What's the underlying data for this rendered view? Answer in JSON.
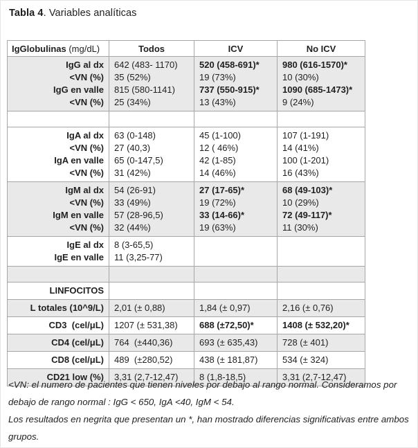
{
  "page": {
    "title_bold": "Tabla 4",
    "title_rest": ". Variables analíticas"
  },
  "table": {
    "header": {
      "igg_label": "IgGlobulinas",
      "igg_unit": " (mg/dL)",
      "todos": "Todos",
      "icv": "ICV",
      "no_icv": "No ICV"
    },
    "blocks": [
      {
        "id": "igg-block",
        "shaded": true,
        "pad_bottom": true,
        "rows": [
          {
            "label": "IgG al dx",
            "cells": [
              {
                "t": "642 (483- 1170)"
              },
              {
                "t": "520 (458-691)*",
                "b": true
              },
              {
                "t": "980 (616-1570)*",
                "b": true
              }
            ]
          },
          {
            "label": "<VN (%)",
            "cells": [
              {
                "t": "35 (52%)"
              },
              {
                "t": "19 (73%)"
              },
              {
                "t": "10 (30%)"
              }
            ]
          },
          {
            "label": "IgG en valle",
            "cells": [
              {
                "t": "815 (580-1141)"
              },
              {
                "t": "737 (550-915)*",
                "b": true
              },
              {
                "t": "1090 (685-1473)*",
                "b": true
              }
            ]
          },
          {
            "label": "<VN (%)",
            "cells": [
              {
                "t": "25 (34%)"
              },
              {
                "t": "13 (43%)"
              },
              {
                "t": "9 (24%)"
              }
            ]
          }
        ]
      },
      {
        "id": "spacer-row-1",
        "shaded": false,
        "spacer": true,
        "rows": []
      },
      {
        "id": "iga-block",
        "shaded": false,
        "rows": [
          {
            "label": "IgA al dx",
            "cells": [
              {
                "t": "63 (0-148)"
              },
              {
                "t": "45 (1-100)"
              },
              {
                "t": "107 (1-191)"
              }
            ]
          },
          {
            "label": "<VN (%)",
            "cells": [
              {
                "t": "27 (40,3)"
              },
              {
                "t": "12 ( 46%)"
              },
              {
                "t": "14 (41%)"
              }
            ]
          },
          {
            "label": "IgA en valle",
            "cells": [
              {
                "t": "65 (0-147,5)"
              },
              {
                "t": "42 (1-85)"
              },
              {
                "t": "100 (1-201)"
              }
            ]
          },
          {
            "label": "<VN (%)",
            "cells": [
              {
                "t": "31 (42%)"
              },
              {
                "t": "14 (46%)"
              },
              {
                "t": "16 (43%)"
              }
            ]
          }
        ]
      },
      {
        "id": "igm-block",
        "shaded": true,
        "rows": [
          {
            "label": "IgM al dx",
            "cells": [
              {
                "t": "54 (26-91)"
              },
              {
                "t": "27 (17-65)*",
                "b": true
              },
              {
                "t": "68 (49-103)*",
                "b": true
              }
            ]
          },
          {
            "label": "<VN (%)",
            "cells": [
              {
                "t": "33 (49%)"
              },
              {
                "t": "19 (72%)"
              },
              {
                "t": "10 (29%)"
              }
            ]
          },
          {
            "label": "IgM en valle",
            "cells": [
              {
                "t": "57 (28-96,5)"
              },
              {
                "t": "33 (14-66)*",
                "b": true
              },
              {
                "t": "72 (49-117)*",
                "b": true
              }
            ]
          },
          {
            "label": "<VN (%)",
            "cells": [
              {
                "t": "32 (44%)"
              },
              {
                "t": "19 (63%)"
              },
              {
                "t": "11 (30%)"
              }
            ]
          }
        ]
      },
      {
        "id": "ige-block",
        "shaded": false,
        "rows": [
          {
            "label": "IgE al dx",
            "cells": [
              {
                "t": "8 (3-65,5)"
              },
              {
                "t": ""
              },
              {
                "t": ""
              }
            ]
          },
          {
            "label": "IgE en valle",
            "cells": [
              {
                "t": "11 (3,25-77)"
              },
              {
                "t": ""
              },
              {
                "t": ""
              }
            ]
          }
        ]
      },
      {
        "id": "spacer-row-2",
        "shaded": true,
        "spacer": true,
        "rows": []
      },
      {
        "id": "linfocitos-header-row",
        "shaded": false,
        "rows": [
          {
            "label": "LINFOCITOS",
            "cells": [
              {
                "t": ""
              },
              {
                "t": ""
              },
              {
                "t": ""
              }
            ]
          }
        ]
      },
      {
        "id": "l-totales-row",
        "shaded": true,
        "rows": [
          {
            "label": "L totales (10^9/L)",
            "cells": [
              {
                "t": "2,01 (± 0,88)"
              },
              {
                "t": "1,84 (± 0,97)"
              },
              {
                "t": "2,16 (± 0,76)"
              }
            ]
          }
        ]
      },
      {
        "id": "cd3-row",
        "shaded": false,
        "rows": [
          {
            "label": "CD3  (cel/μL)",
            "cells": [
              {
                "t": "1207 (± 531,38)"
              },
              {
                "t": "688 (±72,50)*",
                "b": true
              },
              {
                "t": "1408 (± 532,20)*",
                "b": true
              }
            ]
          }
        ]
      },
      {
        "id": "cd4-row",
        "shaded": true,
        "rows": [
          {
            "label": "CD4 (cel/μL)",
            "cells": [
              {
                "t": "764  (±440,36)"
              },
              {
                "t": "693 (± 635,43)"
              },
              {
                "t": "728 (± 401)"
              }
            ]
          }
        ]
      },
      {
        "id": "cd8-row",
        "shaded": false,
        "rows": [
          {
            "label": "CD8 (cel/μL)",
            "cells": [
              {
                "t": "489  (±280,52)"
              },
              {
                "t": "438 (± 181,87)"
              },
              {
                "t": "534 (± 324)"
              }
            ]
          }
        ]
      },
      {
        "id": "cd21-row",
        "shaded": true,
        "rows": [
          {
            "label": "CD21 low (%)",
            "cells": [
              {
                "t": "3,31 (2,7-12,47)"
              },
              {
                "t": "8 (1,8-18,5)"
              },
              {
                "t": "3,31 (2,7-12,47)"
              }
            ]
          }
        ]
      }
    ]
  },
  "footnote": {
    "line1": "<VN: el numero de pacientes que tienen niveles por debajo al rango normal. Consideramos por debajo de rango normal : IgG < 650, IgA <40, IgM < 54.",
    "line2": "Los resultados en negrita que presentan un *, han mostrado diferencias significativas entre ambos grupos."
  },
  "colors": {
    "row_shade": "#e9e9e9",
    "border": "#a6a6a6",
    "text": "#1f1f1f"
  }
}
